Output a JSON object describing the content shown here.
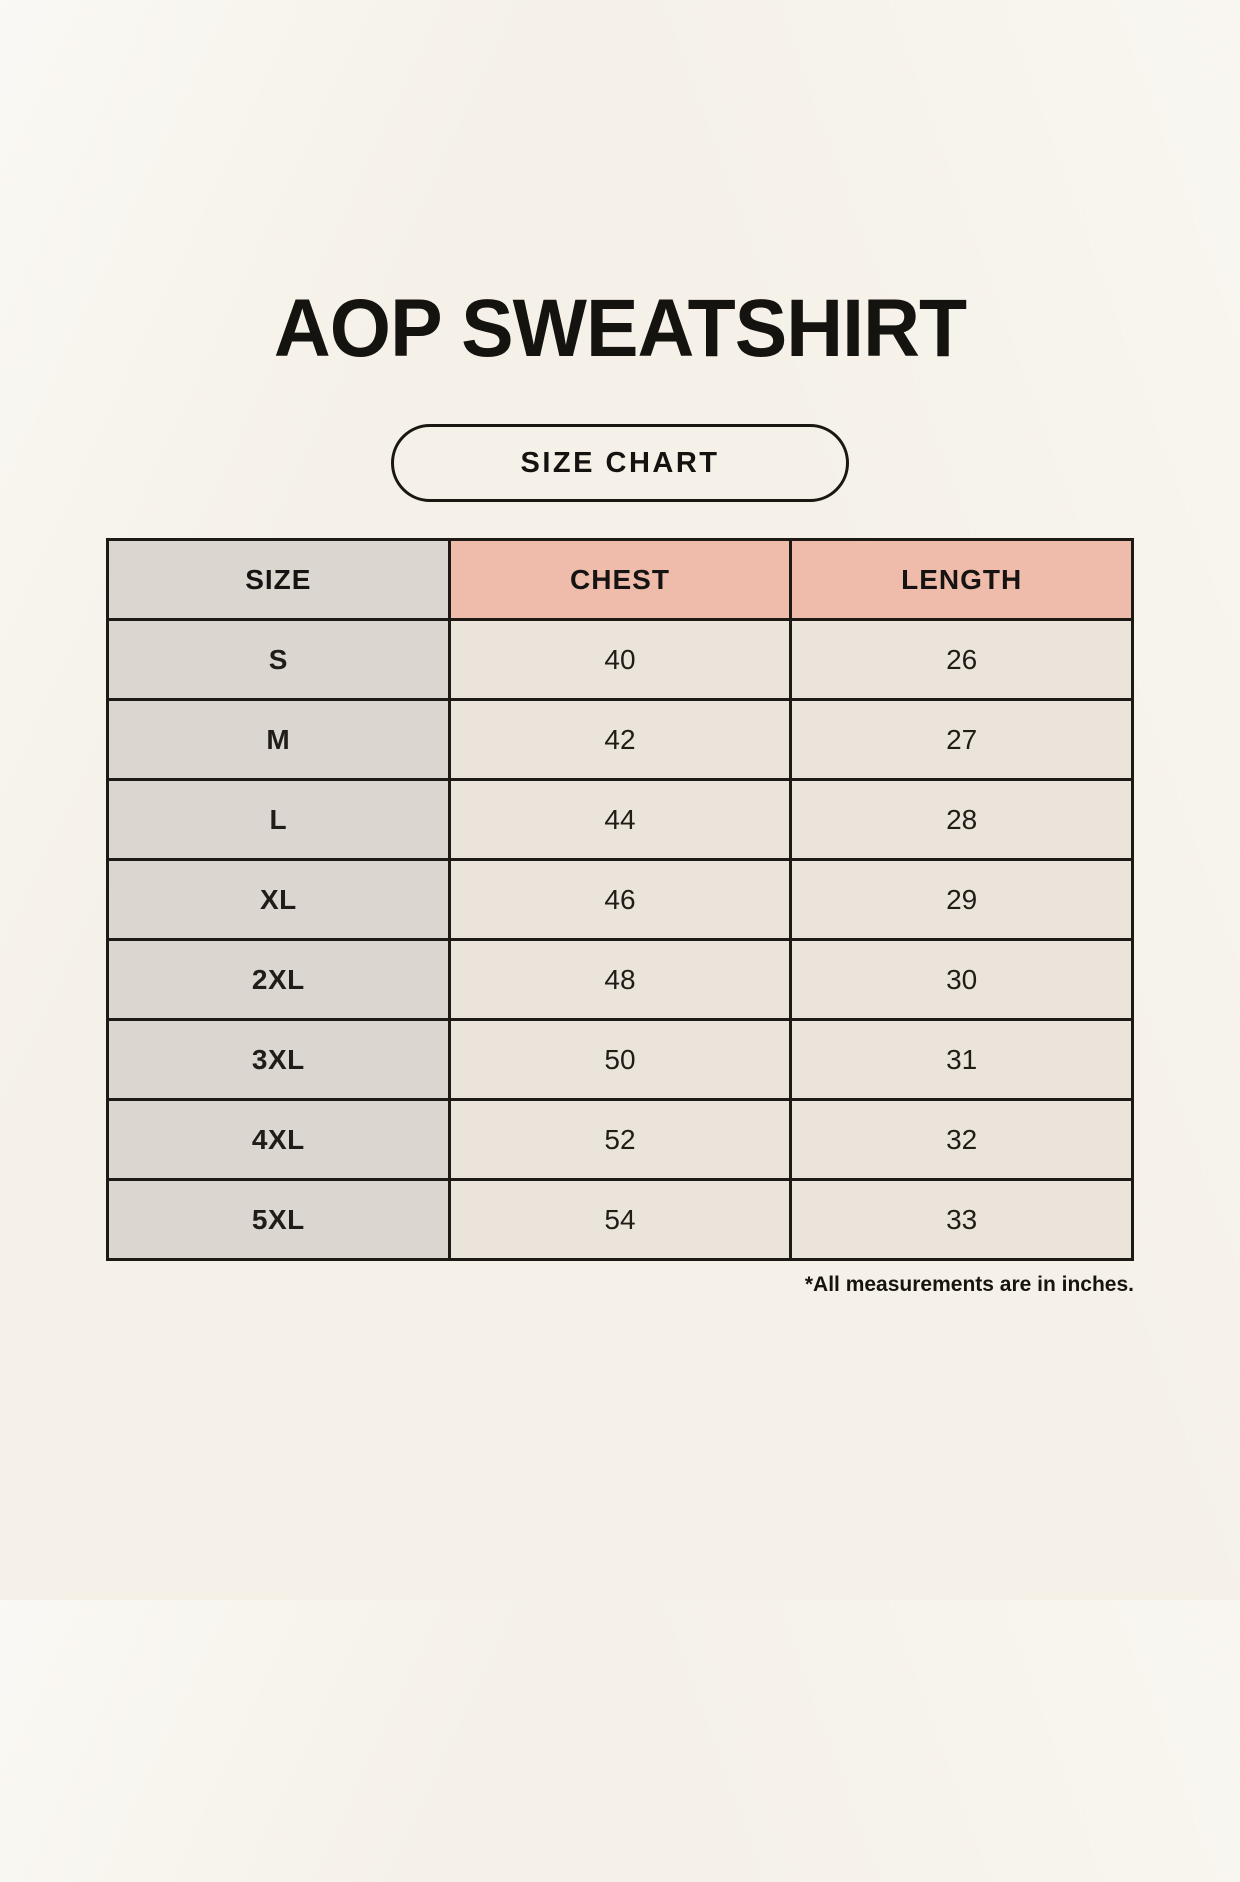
{
  "page": {
    "title": "AOP SWEATSHIRT",
    "badge_label": "SIZE CHART",
    "note": "*All measurements are in inches."
  },
  "chart_data": {
    "type": "table",
    "title": "AOP SWEATSHIRT size chart",
    "columns": [
      "SIZE",
      "CHEST",
      "LENGTH"
    ],
    "rows": [
      [
        "S",
        "40",
        "26"
      ],
      [
        "M",
        "42",
        "27"
      ],
      [
        "L",
        "44",
        "28"
      ],
      [
        "XL",
        "46",
        "29"
      ],
      [
        "2XL",
        "48",
        "30"
      ],
      [
        "3XL",
        "50",
        "31"
      ],
      [
        "4XL",
        "52",
        "32"
      ],
      [
        "5XL",
        "54",
        "33"
      ]
    ],
    "units": "inches",
    "layout": {
      "grid": true,
      "header_fill_size": "#dcd6d0",
      "header_fill_measure": "#efbcab"
    }
  },
  "colors": {
    "background": "#f5f1e8",
    "table_border": "#1d1a15",
    "header_salmon": "#efbcab",
    "size_column_gray": "#dcd6d0",
    "data_cell_cream": "#ebe4da",
    "text": "#161412"
  }
}
